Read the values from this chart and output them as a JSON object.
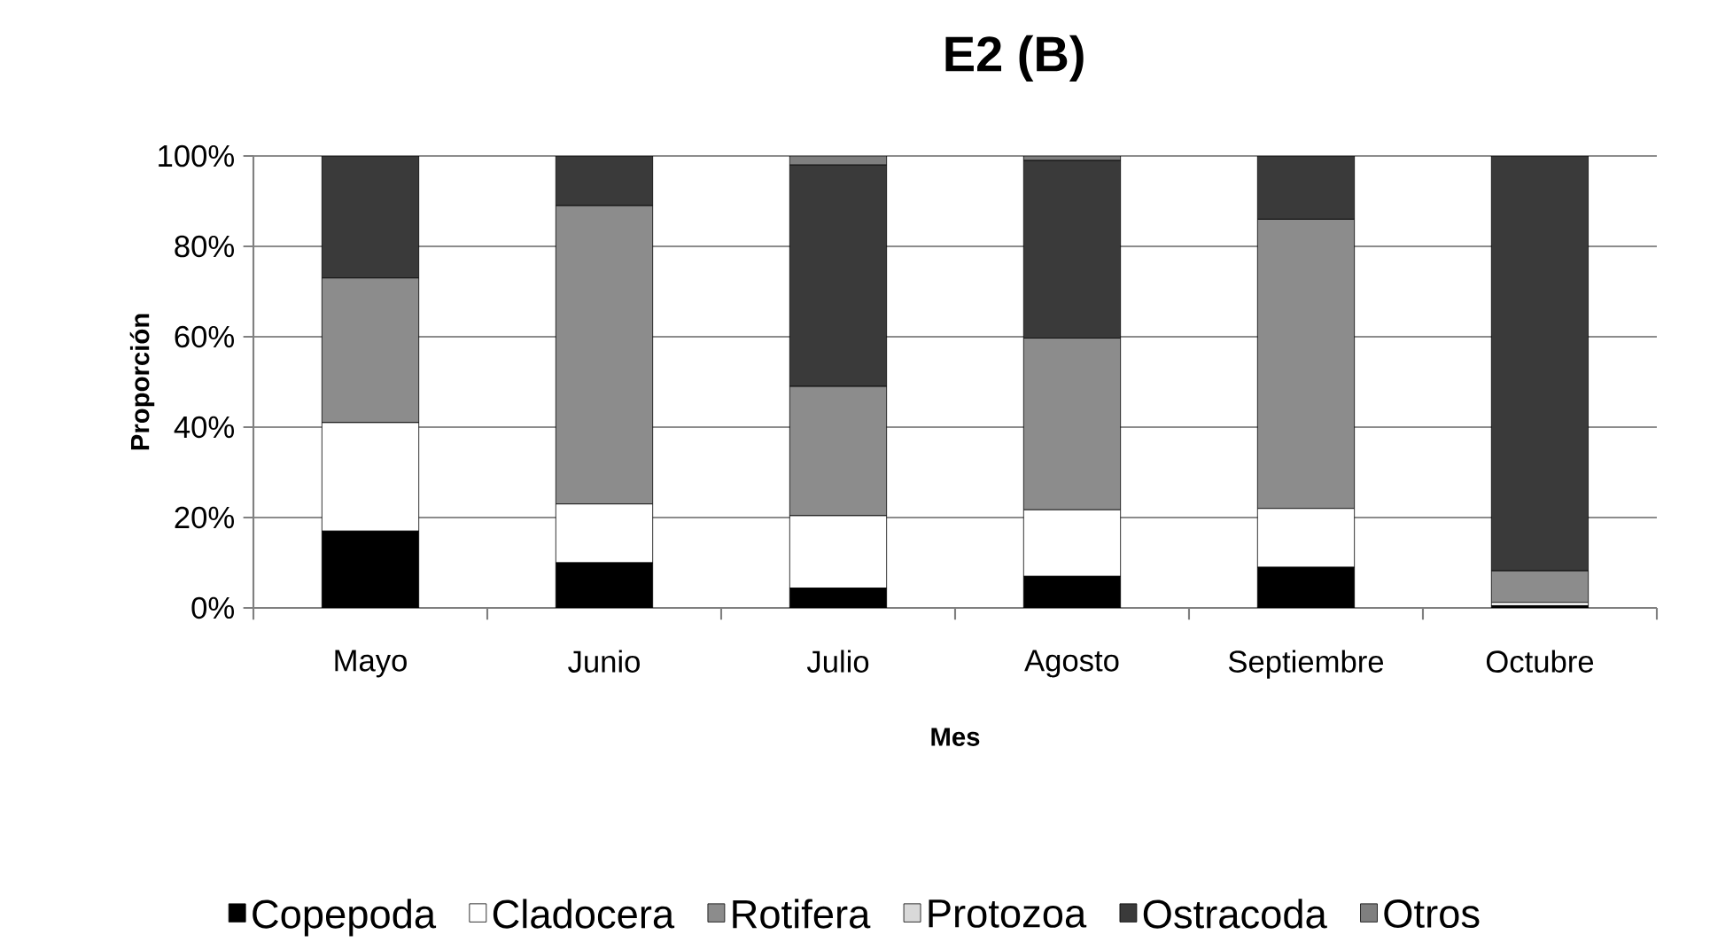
{
  "chart_data": {
    "type": "bar",
    "stacked": true,
    "title": "E2 (B)",
    "xlabel": "Mes",
    "ylabel": "Proporción",
    "categories": [
      "Mayo",
      "Junio",
      "Julio",
      "Agosto",
      "Septiembre",
      "Octubre"
    ],
    "series": [
      {
        "name": "Copepoda",
        "color": "#000000",
        "values": [
          17,
          10,
          4.4,
          7,
          9,
          0.5
        ]
      },
      {
        "name": "Cladocera",
        "color": "#ffffff",
        "values": [
          24,
          13,
          16,
          14.7,
          13,
          0.7
        ]
      },
      {
        "name": "Rotifera",
        "color": "#8c8c8c",
        "values": [
          32,
          66,
          28.6,
          38,
          64,
          7
        ]
      },
      {
        "name": "Protozoa",
        "color": "#d9d9d9",
        "values": [
          0,
          0,
          0,
          0,
          0,
          0
        ]
      },
      {
        "name": "Ostracoda",
        "color": "#3a3a3a",
        "values": [
          27,
          11,
          49,
          39.3,
          14,
          91.8
        ]
      },
      {
        "name": "Otros",
        "color": "#7f7f7f",
        "values": [
          0,
          0,
          2,
          1,
          0,
          0
        ]
      }
    ],
    "ylim": [
      0,
      100
    ],
    "yticks": [
      {
        "value": 0,
        "label": "0%"
      },
      {
        "value": 20,
        "label": "20%"
      },
      {
        "value": 40,
        "label": "40%"
      },
      {
        "value": 60,
        "label": "60%"
      },
      {
        "value": 80,
        "label": "80%"
      },
      {
        "value": 100,
        "label": "100%"
      }
    ],
    "grid": "y",
    "legend": "bottom"
  }
}
